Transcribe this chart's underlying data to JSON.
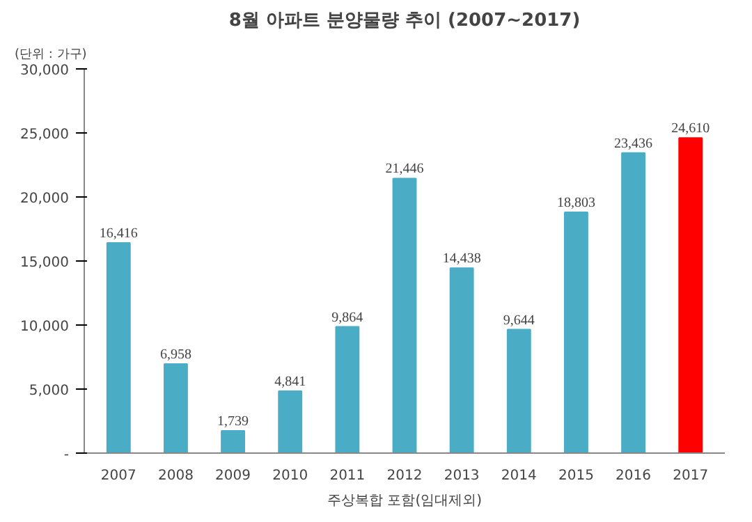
{
  "chart_data": {
    "type": "bar",
    "title": "8월 아파트 분양물량 추이 (2007~2017)",
    "categories": [
      "2007",
      "2008",
      "2009",
      "2010",
      "2011",
      "2012",
      "2013",
      "2014",
      "2015",
      "2016",
      "2017"
    ],
    "values": [
      16416,
      6958,
      1739,
      4841,
      9864,
      21446,
      14438,
      9644,
      18803,
      23436,
      24610
    ],
    "colors": [
      "#4bacc6",
      "#4bacc6",
      "#4bacc6",
      "#4bacc6",
      "#4bacc6",
      "#4bacc6",
      "#4bacc6",
      "#4bacc6",
      "#4bacc6",
      "#4bacc6",
      "#ff0000"
    ],
    "value_labels": [
      "16,416",
      "6,958",
      "1,739",
      "4,841",
      "9,864",
      "21,446",
      "14,438",
      "9,644",
      "18,803",
      "23,436",
      "24,610"
    ],
    "ylim": [
      0,
      30000
    ],
    "yticks": [
      {
        "value": 0,
        "label": "-"
      },
      {
        "value": 5000,
        "label": "5,000"
      },
      {
        "value": 10000,
        "label": "10,000"
      },
      {
        "value": 15000,
        "label": "15,000"
      },
      {
        "value": 20000,
        "label": "20,000"
      },
      {
        "value": 25000,
        "label": "25,000"
      },
      {
        "value": 30000,
        "label": "30,000"
      }
    ],
    "annotations": [
      "(단위 : 가구)",
      "주상복합 포함(임대제외)"
    ]
  }
}
